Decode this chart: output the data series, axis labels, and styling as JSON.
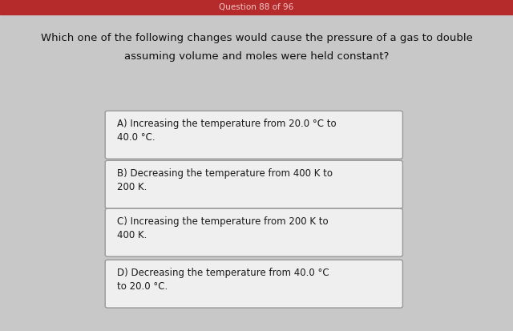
{
  "header_text": "Question 88 of 96",
  "header_bg": "#b52a2a",
  "header_text_color": "#f5c8c8",
  "bg_color": "#c8c8c8",
  "question_line1": "Which one of the following changes would cause the pressure of a gas to double",
  "question_line2": "assuming volume and moles were held constant?",
  "options": [
    "A) Increasing the temperature from 20.0 °C to\n40.0 °C.",
    "B) Decreasing the temperature from 400 K to\n200 K.",
    "C) Increasing the temperature from 200 K to\n400 K.",
    "D) Decreasing the temperature from 40.0 °C\nto 20.0 °C."
  ],
  "box_bg": "#efefef",
  "box_border": "#999999",
  "box_text_color": "#1a1a1a",
  "question_text_color": "#111111",
  "figsize": [
    6.4,
    4.13
  ],
  "dpi": 100
}
